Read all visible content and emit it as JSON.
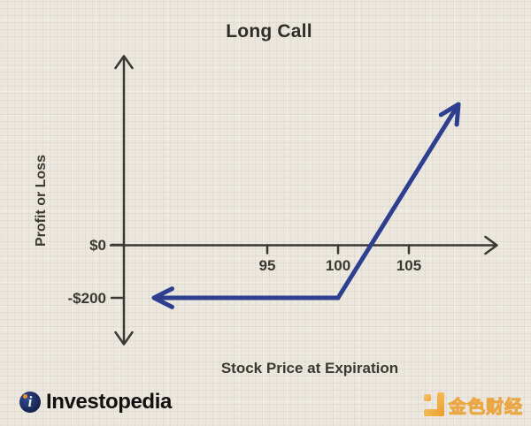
{
  "colors": {
    "background": "#ebe7de",
    "axis": "#3a3833",
    "payoff_line": "#2e3f8f",
    "watermark_orange": "#efa339"
  },
  "chart_data": {
    "type": "line",
    "title": "Long Call",
    "xlabel": "Stock Price at Expiration",
    "ylabel": "Profit or Loss",
    "x_ticks": [
      "95",
      "100",
      "105"
    ],
    "x_tick_values": [
      95,
      100,
      105
    ],
    "y_ticks": [
      "$0",
      "-$200"
    ],
    "y_tick_values": [
      0,
      -200
    ],
    "grid": "graph-paper texture background",
    "legend": "none",
    "axes_style": "arrowed axes, y-axis arrows both ends, x-axis arrow right",
    "series": [
      {
        "name": "long-call-payoff",
        "color": "#2e3f8f",
        "arrow_start": true,
        "arrow_end": true,
        "points": [
          {
            "x": 87,
            "y": -200
          },
          {
            "x": 100,
            "y": -200
          },
          {
            "x": 108.5,
            "y": 530
          }
        ]
      }
    ]
  },
  "branding": {
    "investopedia_label": "Investopedia",
    "investopedia_monogram": "i",
    "watermark_label": "金色财经"
  }
}
